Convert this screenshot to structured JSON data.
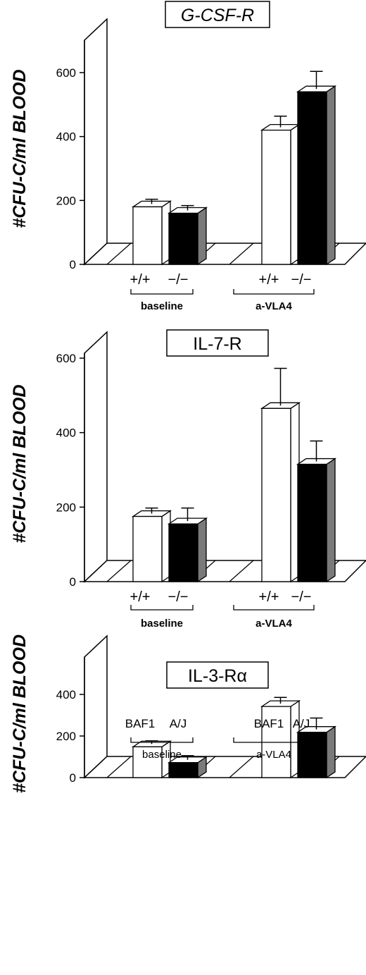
{
  "chart_data": [
    {
      "type": "bar",
      "title": "G-CSF-R",
      "ylabel": "#CFU-C/ml BLOOD",
      "ylim": [
        0,
        600
      ],
      "yticks": [
        "0",
        "200",
        "400",
        "600"
      ],
      "ytick_values": [
        0,
        200,
        400,
        600
      ],
      "groups": [
        {
          "label": "baseline",
          "categories": [
            "+/+",
            "−/−"
          ],
          "values": [
            180,
            160
          ],
          "errors": [
            15,
            15
          ]
        },
        {
          "label": "a-VLA4",
          "categories": [
            "+/+",
            "−/−"
          ],
          "values": [
            420,
            540
          ],
          "errors": [
            35,
            55
          ]
        }
      ],
      "bar_colors": [
        "#ffffff",
        "#000000"
      ],
      "grid": false
    },
    {
      "type": "bar",
      "title": "IL-7-R",
      "ylabel": "#CFU-C/ml BLOOD",
      "ylim": [
        0,
        600
      ],
      "yticks": [
        "0",
        "200",
        "400",
        "600"
      ],
      "ytick_values": [
        0,
        200,
        400,
        600
      ],
      "groups": [
        {
          "label": "baseline",
          "categories": [
            "+/+",
            "−/−"
          ],
          "values": [
            175,
            155
          ],
          "errors": [
            15,
            35
          ]
        },
        {
          "label": "a-VLA4",
          "categories": [
            "+/+",
            "−/−"
          ],
          "values": [
            465,
            315
          ],
          "errors": [
            100,
            55
          ]
        }
      ],
      "bar_colors": [
        "#ffffff",
        "#000000"
      ],
      "grid": false
    },
    {
      "type": "bar",
      "title": "IL-3-Rα",
      "ylabel": "#CFU-C/ml BLOOD",
      "ylim": [
        0,
        400
      ],
      "yticks": [
        "0",
        "200",
        "400"
      ],
      "ytick_values": [
        0,
        200,
        400
      ],
      "groups": [
        {
          "label": "baseline",
          "categories": [
            "BAF1",
            "A/J"
          ],
          "values": [
            148,
            72
          ],
          "errors": [
            15,
            20
          ]
        },
        {
          "label": "a-VLA4",
          "categories": [
            "BAF1",
            "A/J"
          ],
          "values": [
            342,
            218
          ],
          "errors": [
            30,
            55
          ]
        }
      ],
      "bar_colors": [
        "#ffffff",
        "#000000"
      ],
      "grid": false
    }
  ]
}
